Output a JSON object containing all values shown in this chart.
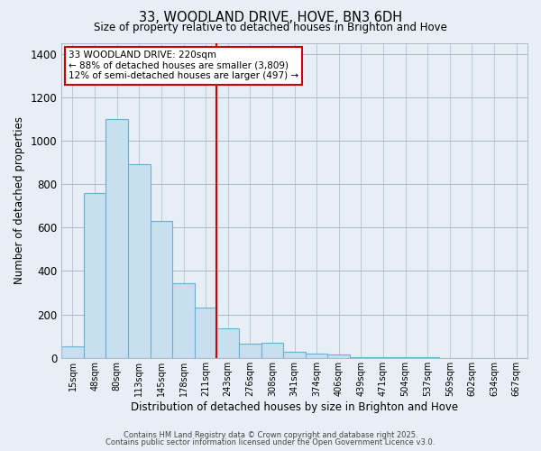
{
  "title": "33, WOODLAND DRIVE, HOVE, BN3 6DH",
  "subtitle": "Size of property relative to detached houses in Brighton and Hove",
  "xlabel": "Distribution of detached houses by size in Brighton and Hove",
  "ylabel": "Number of detached properties",
  "bar_labels": [
    "15sqm",
    "48sqm",
    "80sqm",
    "113sqm",
    "145sqm",
    "178sqm",
    "211sqm",
    "243sqm",
    "276sqm",
    "308sqm",
    "341sqm",
    "374sqm",
    "406sqm",
    "439sqm",
    "471sqm",
    "504sqm",
    "537sqm",
    "569sqm",
    "602sqm",
    "634sqm",
    "667sqm"
  ],
  "bar_values": [
    55,
    760,
    1100,
    890,
    630,
    345,
    230,
    135,
    65,
    70,
    30,
    20,
    15,
    5,
    5,
    2,
    2,
    1,
    1,
    1,
    1
  ],
  "bar_color": "#c8dff0",
  "bar_edgecolor": "#6aafd6",
  "ylim": [
    0,
    1450
  ],
  "yticks": [
    0,
    200,
    400,
    600,
    800,
    1000,
    1200,
    1400
  ],
  "vline_x": 6.5,
  "vline_color": "#cc0000",
  "annotation_title": "33 WOODLAND DRIVE: 220sqm",
  "annotation_line1": "← 88% of detached houses are smaller (3,809)",
  "annotation_line2": "12% of semi-detached houses are larger (497) →",
  "footer1": "Contains HM Land Registry data © Crown copyright and database right 2025.",
  "footer2": "Contains public sector information licensed under the Open Government Licence v3.0.",
  "bg_color": "#e8eef5",
  "plot_bg_color": "#e8eef5",
  "grid_color": "#b0b8c8"
}
